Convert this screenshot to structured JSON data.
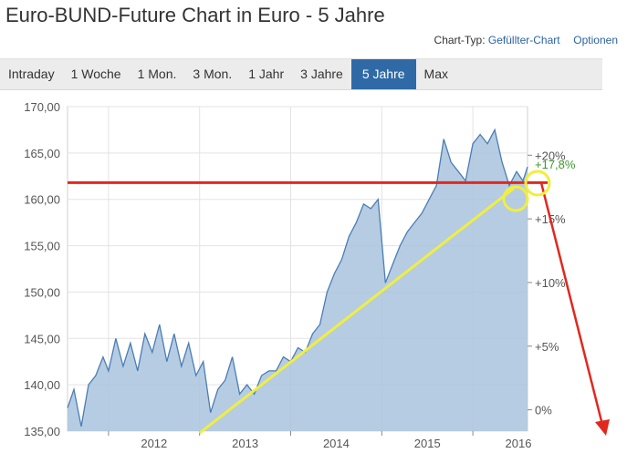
{
  "header": {
    "title": "Euro-BUND-Future Chart in Euro - 5 Jahre",
    "chart_type_label": "Chart-Typ:",
    "chart_type_value": "Gefüllter-Chart",
    "options_label": "Optionen"
  },
  "tabs": [
    {
      "label": "Intraday",
      "active": false
    },
    {
      "label": "1 Woche",
      "active": false
    },
    {
      "label": "1 Mon.",
      "active": false
    },
    {
      "label": "3 Mon.",
      "active": false
    },
    {
      "label": "1 Jahr",
      "active": false
    },
    {
      "label": "3 Jahre",
      "active": false
    },
    {
      "label": "5 Jahre",
      "active": true
    },
    {
      "label": "Max",
      "active": false
    }
  ],
  "colors": {
    "line": "#4a7db5",
    "fill": "#a9c3dd",
    "grid": "#e3e3e3",
    "axis_text": "#555555",
    "active_tab": "#2f6aa6",
    "change_label": "#3a9a2a",
    "red_annotation": "#e0281e",
    "yellow_annotation": "#f1ee3f"
  },
  "chart_data": {
    "type": "area",
    "title": "Euro-BUND-Future Chart in Euro - 5 Jahre",
    "x_ticks": [
      "2012",
      "2013",
      "2014",
      "2015",
      "2016"
    ],
    "x_range": [
      2011.55,
      2016.6
    ],
    "y_ticks": [
      "135,00",
      "140,00",
      "145,00",
      "150,00",
      "155,00",
      "160,00",
      "165,00",
      "170,00"
    ],
    "y_range": [
      135,
      170
    ],
    "secondary_y_ticks": [
      "0%",
      "+5%",
      "+10%",
      "+15%",
      "+20%"
    ],
    "secondary_reference": 137.3,
    "last_change_label": "+17,8%",
    "grid": true,
    "series": [
      {
        "x": [
          2011.55,
          2011.62,
          2011.7,
          2011.78,
          2011.86,
          2011.94,
          2012.0,
          2012.08,
          2012.16,
          2012.24,
          2012.32,
          2012.4,
          2012.48,
          2012.56,
          2012.64,
          2012.72,
          2012.8,
          2012.88,
          2012.96,
          2013.04,
          2013.12,
          2013.2,
          2013.28,
          2013.36,
          2013.44,
          2013.52,
          2013.6,
          2013.68,
          2013.76,
          2013.84,
          2013.92,
          2014.0,
          2014.08,
          2014.16,
          2014.24,
          2014.32,
          2014.4,
          2014.48,
          2014.56,
          2014.64,
          2014.72,
          2014.8,
          2014.88,
          2014.96,
          2015.04,
          2015.12,
          2015.2,
          2015.28,
          2015.36,
          2015.44,
          2015.52,
          2015.6,
          2015.68,
          2015.76,
          2015.84,
          2015.92,
          2016.0,
          2016.08,
          2016.16,
          2016.24,
          2016.32,
          2016.4,
          2016.48,
          2016.55,
          2016.6
        ],
        "y": [
          137.5,
          139.5,
          135.5,
          140.0,
          141.0,
          143.0,
          141.5,
          145.0,
          142.0,
          144.5,
          141.5,
          145.5,
          143.5,
          146.5,
          142.5,
          145.5,
          142.0,
          144.5,
          141.0,
          142.5,
          137.0,
          139.5,
          140.5,
          143.0,
          139.0,
          140.0,
          139.0,
          141.0,
          141.5,
          141.5,
          143.0,
          142.5,
          144.0,
          143.5,
          145.5,
          146.5,
          150.0,
          152.0,
          153.5,
          156.0,
          157.5,
          159.5,
          159.0,
          160.0,
          151.0,
          153.0,
          155.0,
          156.5,
          157.5,
          158.5,
          160.0,
          161.5,
          166.5,
          164.0,
          163.0,
          162.0,
          166.0,
          167.0,
          166.0,
          167.5,
          164.0,
          161.5,
          163.0,
          162.0,
          163.5
        ]
      }
    ],
    "annotations": {
      "red_line_y": 161.8,
      "yellow_line": {
        "x": [
          2013.0,
          2016.45
        ],
        "y": [
          134.8,
          161.2
        ]
      }
    }
  }
}
